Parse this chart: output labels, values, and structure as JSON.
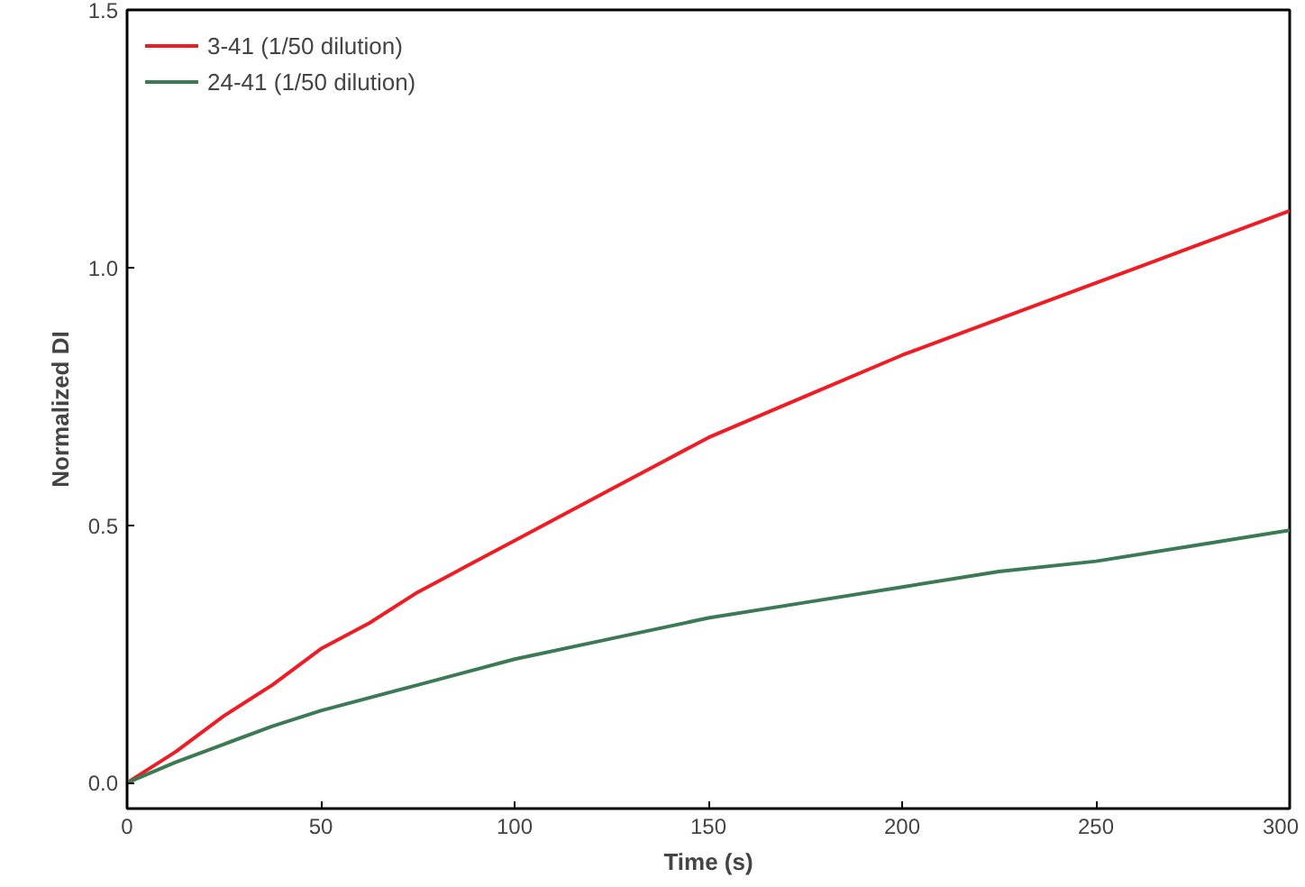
{
  "chart_data": {
    "type": "line",
    "xlabel": "Time (s)",
    "ylabel": "Normalized DI",
    "xlim": [
      0,
      300
    ],
    "ylim": [
      -0.05,
      1.5
    ],
    "xticks": [
      0,
      50,
      100,
      150,
      200,
      250,
      300
    ],
    "yticks": [
      {
        "value": 0,
        "label": "0.0"
      },
      {
        "value": 0.5,
        "label": "0.5"
      },
      {
        "value": 1,
        "label": "1.0"
      },
      {
        "value": 1.5,
        "label": "1.5"
      }
    ],
    "grid": false,
    "legend": "top left",
    "marker": "none",
    "line_style": "solid",
    "series": [
      {
        "name": "3-41 (1/50 dilution)",
        "color": "#ee1c25",
        "x": [
          0,
          12.5,
          25,
          37.5,
          50,
          62.5,
          75,
          87.5,
          100,
          125,
          150,
          175,
          200,
          225,
          250,
          275,
          300
        ],
        "values": [
          0.0,
          0.06,
          0.13,
          0.19,
          0.26,
          0.31,
          0.37,
          0.42,
          0.47,
          0.57,
          0.67,
          0.75,
          0.83,
          0.9,
          0.97,
          1.04,
          1.11
        ]
      },
      {
        "name": "24-41 (1/50 dilution)",
        "color": "#3c7a55",
        "x": [
          0,
          12.5,
          25,
          37.5,
          50,
          75,
          100,
          125,
          150,
          175,
          200,
          225,
          250,
          275,
          300
        ],
        "values": [
          0.0,
          0.04,
          0.075,
          0.11,
          0.14,
          0.19,
          0.24,
          0.28,
          0.32,
          0.35,
          0.38,
          0.41,
          0.43,
          0.46,
          0.49
        ]
      }
    ]
  }
}
